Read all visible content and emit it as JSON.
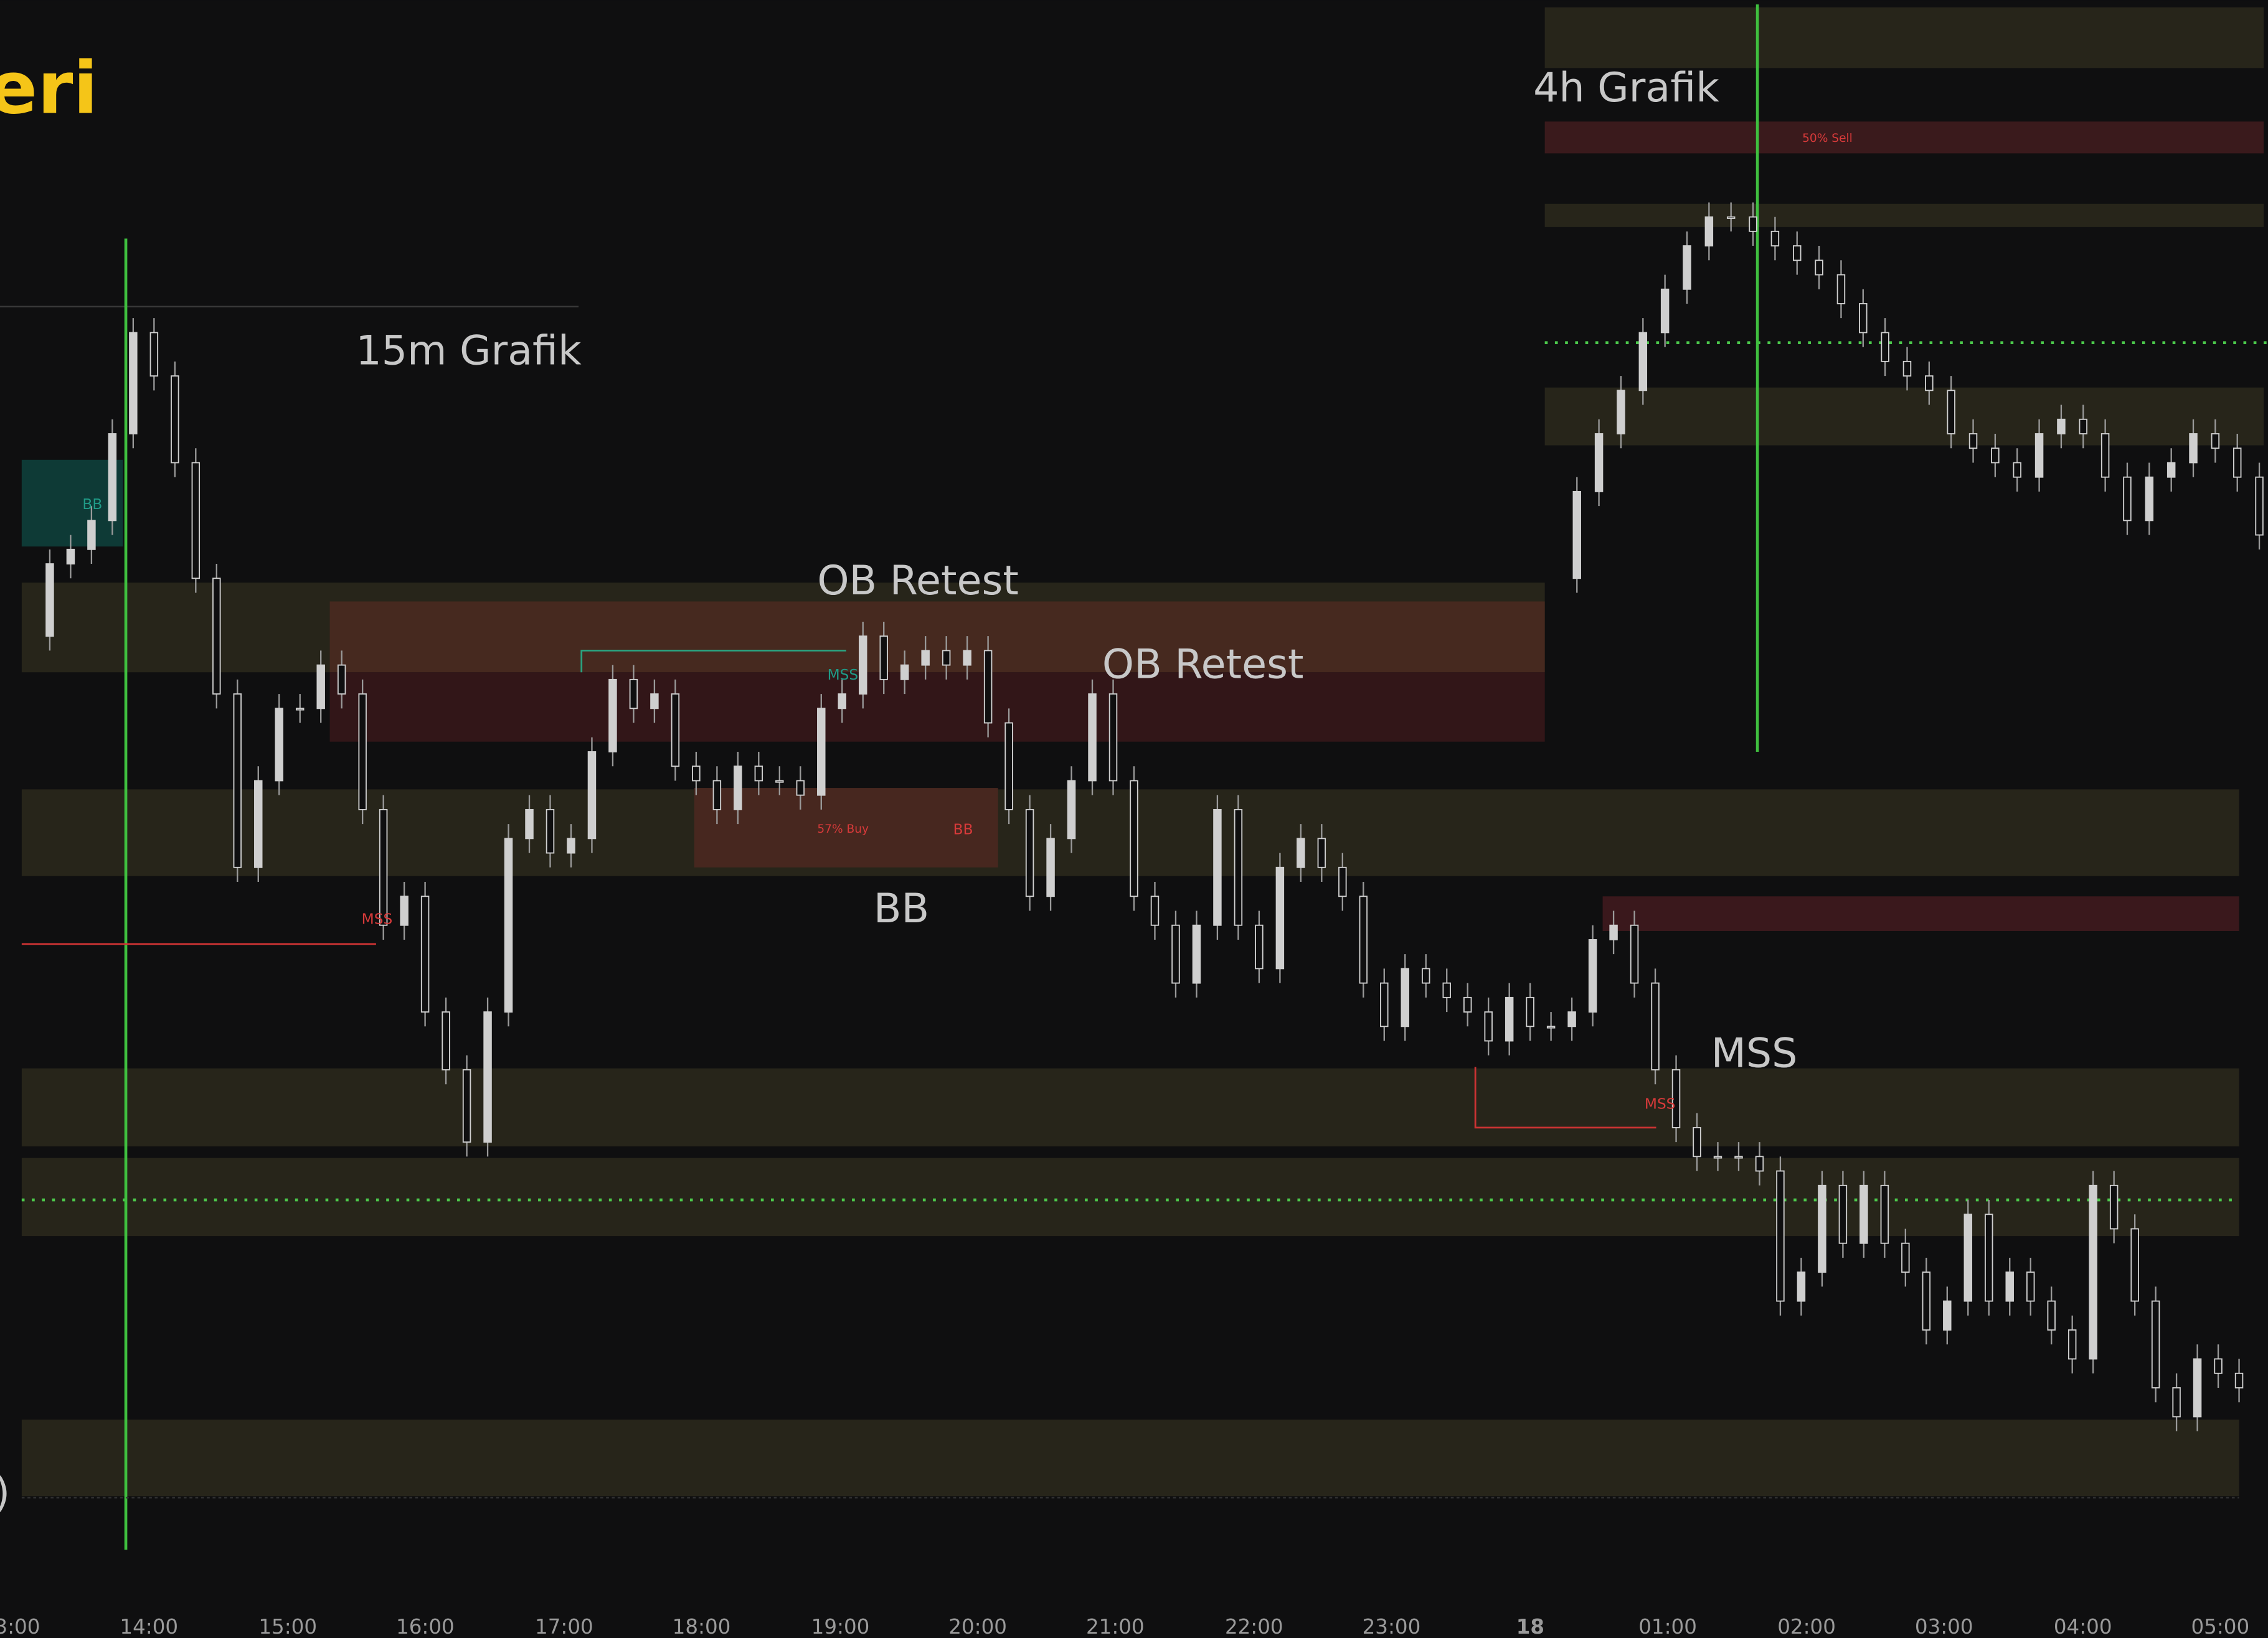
{
  "header": {
    "title": "eri"
  },
  "annotations": {
    "grafik_15m": "15m Grafik",
    "grafik_4h": "4h Grafik",
    "sell_zone": "50% Sell",
    "buy_zone": "57% Buy",
    "bb_teal": "BB",
    "bb_red": "BB",
    "bb_big": "BB",
    "ob_retest_1": "OB Retest",
    "ob_retest_2": "OB Retest",
    "mss_teal": "MSS",
    "mss_red_1": "MSS",
    "mss_red_2": "MSS",
    "mss_big": "MSS",
    "left_edge": ")"
  },
  "time_axis": [
    "3:00",
    "14:00",
    "15:00",
    "16:00",
    "17:00",
    "18:00",
    "19:00",
    "20:00",
    "21:00",
    "22:00",
    "23:00",
    "18",
    "01:00",
    "02:00",
    "03:00",
    "04:00",
    "05:00"
  ],
  "chart_data": {
    "type": "candlestick",
    "ylim": [
      0,
      1133
    ],
    "color": "#cfcfcf",
    "series": [
      {
        "values": [
          693,
          743,
          753,
          773,
          833,
          903,
          873,
          813,
          733,
          653,
          533,
          593,
          643,
          643,
          673,
          653,
          573,
          493,
          513,
          433,
          393,
          343,
          433,
          553,
          573,
          543,
          553,
          613,
          663,
          643,
          653,
          603,
          593,
          573,
          603,
          593,
          593,
          583,
          643,
          653,
          693,
          663,
          673,
          683,
          673,
          683,
          633,
          573,
          513,
          553,
          593,
          653,
          593,
          513,
          493,
          453,
          493,
          573,
          493,
          463,
          533,
          553,
          533,
          513,
          453,
          423,
          463,
          453,
          443,
          433,
          413,
          443,
          423,
          423,
          433,
          483,
          493,
          453,
          393,
          353,
          333,
          333,
          333,
          323,
          233,
          253,
          313,
          273,
          313,
          273,
          253,
          213,
          233,
          293,
          233,
          253,
          233,
          213,
          193,
          313,
          283,
          233,
          173,
          153,
          193,
          183,
          173
        ]
      },
      {
        "values": [
          733,
          793,
          833,
          863,
          903,
          933,
          963,
          983,
          983,
          973,
          963,
          953,
          943,
          923,
          903,
          883,
          873,
          863,
          833,
          823,
          813,
          803,
          833,
          843,
          833,
          803,
          773,
          803,
          813,
          833,
          823,
          803,
          763
        ]
      }
    ]
  }
}
